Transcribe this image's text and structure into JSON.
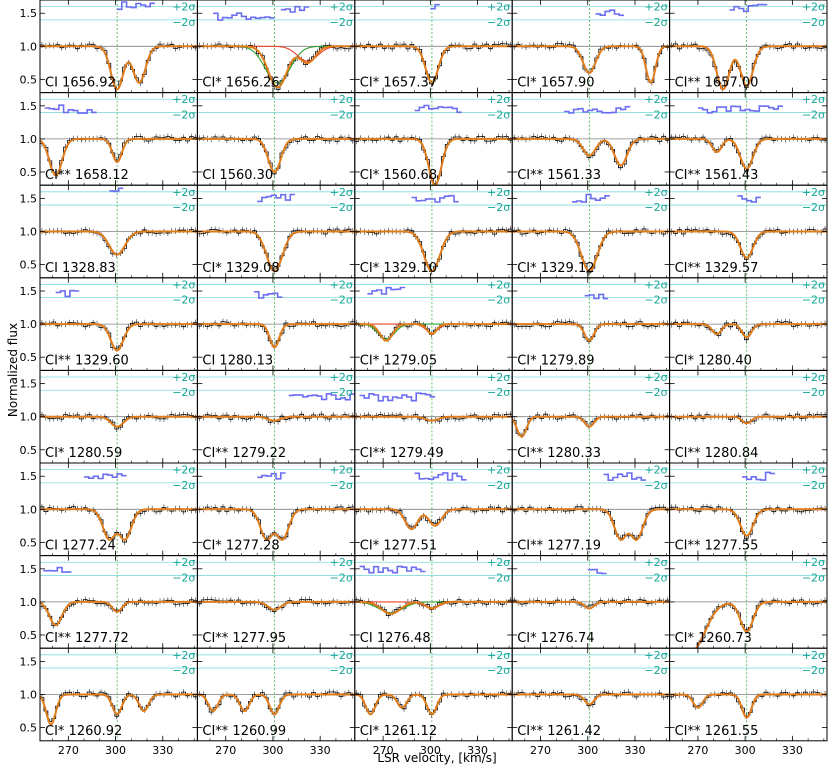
{
  "chart_data": {
    "type": "line",
    "ylabel": "Normalized flux",
    "xlabel": "LSR velocity, [km/s]",
    "xlim": [
      252,
      352
    ],
    "ylim": [
      0.3,
      1.7
    ],
    "xticks": [
      270,
      300,
      330
    ],
    "yticks": [
      0.5,
      1.0,
      1.5
    ],
    "reference_velocity": 301,
    "sigma_labels": [
      "+2σ",
      "−2σ"
    ],
    "colors": {
      "data": "#000000",
      "model": "#e07b1a",
      "component_green": "#2ca02c",
      "component_red": "#e8432a",
      "residual": "#6b6ef0",
      "sigma_band": "#7fdedc",
      "continuum": "#808080",
      "ref_line": "#2ca02c"
    },
    "panels": [
      {
        "label": "CI 1656.92",
        "lines": [
          {
            "v": 301,
            "d": 0.65,
            "w": 4
          },
          {
            "v": 315,
            "d": 0.55,
            "w": 4
          }
        ],
        "residual": [
          {
            "x0": 301,
            "x1": 322,
            "y": 1.62
          }
        ]
      },
      {
        "label": "CI* 1656.26",
        "lines": [
          {
            "v": 303,
            "d": 0.62,
            "w": 6
          },
          {
            "v": 322,
            "d": 0.25,
            "w": 5
          }
        ],
        "residual": [
          {
            "x0": 262,
            "x1": 300,
            "y": 1.45
          },
          {
            "x0": 305,
            "x1": 322,
            "y": 1.55
          }
        ],
        "components": true
      },
      {
        "label": "CI* 1657.37",
        "lines": [
          {
            "v": 301,
            "d": 0.55,
            "w": 4
          }
        ],
        "residual": [
          {
            "x0": 300,
            "x1": 305,
            "y": 1.6
          }
        ]
      },
      {
        "label": "CI* 1657.90",
        "lines": [
          {
            "v": 301,
            "d": 0.4,
            "w": 4
          },
          {
            "v": 340,
            "d": 0.55,
            "w": 3
          }
        ],
        "residual": [
          {
            "x0": 305,
            "x1": 320,
            "y": 1.5
          }
        ]
      },
      {
        "label": "CI** 1657.00",
        "lines": [
          {
            "v": 286,
            "d": 0.65,
            "w": 4
          },
          {
            "v": 301,
            "d": 0.6,
            "w": 4
          }
        ],
        "residual": [
          {
            "x0": 290,
            "x1": 312,
            "y": 1.58
          }
        ]
      },
      {
        "label": "CI** 1658.12",
        "lines": [
          {
            "v": 262,
            "d": 0.55,
            "w": 4
          },
          {
            "v": 301,
            "d": 0.35,
            "w": 3
          }
        ],
        "residual": [
          {
            "x0": 255,
            "x1": 285,
            "y": 1.45
          }
        ]
      },
      {
        "label": "CI 1560.30",
        "lines": [
          {
            "v": 301,
            "d": 0.5,
            "w": 4
          }
        ],
        "residual": []
      },
      {
        "label": "CI* 1560.68",
        "lines": [
          {
            "v": 303,
            "d": 0.7,
            "w": 4
          }
        ],
        "residual": [
          {
            "x0": 290,
            "x1": 318,
            "y": 1.45
          }
        ]
      },
      {
        "label": "CI** 1561.33",
        "lines": [
          {
            "v": 301,
            "d": 0.25,
            "w": 4
          },
          {
            "v": 321,
            "d": 0.4,
            "w": 4
          }
        ],
        "residual": [
          {
            "x0": 285,
            "x1": 325,
            "y": 1.45
          }
        ]
      },
      {
        "label": "CI** 1561.43",
        "lines": [
          {
            "v": 282,
            "d": 0.2,
            "w": 3
          },
          {
            "v": 301,
            "d": 0.45,
            "w": 4
          }
        ],
        "residual": [
          {
            "x0": 270,
            "x1": 322,
            "y": 1.45
          }
        ]
      },
      {
        "label": "CI 1328.83",
        "lines": [
          {
            "v": 301,
            "d": 0.35,
            "w": 5
          }
        ],
        "residual": [
          {
            "x0": 296,
            "x1": 304,
            "y": 1.6
          }
        ]
      },
      {
        "label": "CI* 1329.08",
        "lines": [
          {
            "v": 301,
            "d": 0.6,
            "w": 5
          }
        ],
        "residual": [
          {
            "x0": 290,
            "x1": 312,
            "y": 1.5
          }
        ]
      },
      {
        "label": "CI* 1329.10",
        "lines": [
          {
            "v": 301,
            "d": 0.6,
            "w": 5
          }
        ],
        "residual": [
          {
            "x0": 288,
            "x1": 315,
            "y": 1.5
          }
        ]
      },
      {
        "label": "CI* 1329.12",
        "lines": [
          {
            "v": 301,
            "d": 0.6,
            "w": 5
          }
        ],
        "residual": [
          {
            "x0": 290,
            "x1": 313,
            "y": 1.5
          }
        ]
      },
      {
        "label": "CI** 1329.57",
        "lines": [
          {
            "v": 301,
            "d": 0.4,
            "w": 4
          }
        ],
        "residual": [
          {
            "x0": 295,
            "x1": 308,
            "y": 1.5
          }
        ]
      },
      {
        "label": "CI** 1329.60",
        "lines": [
          {
            "v": 301,
            "d": 0.4,
            "w": 4
          }
        ],
        "residual": [
          {
            "x0": 262,
            "x1": 275,
            "y": 1.45
          }
        ]
      },
      {
        "label": "CI 1280.13",
        "lines": [
          {
            "v": 301,
            "d": 0.35,
            "w": 3
          }
        ],
        "residual": [
          {
            "x0": 288,
            "x1": 305,
            "y": 1.45
          }
        ]
      },
      {
        "label": "CI* 1279.05",
        "lines": [
          {
            "v": 272,
            "d": 0.25,
            "w": 4
          },
          {
            "v": 301,
            "d": 0.15,
            "w": 3
          }
        ],
        "residual": [
          {
            "x0": 260,
            "x1": 282,
            "y": 1.5
          }
        ],
        "components": true
      },
      {
        "label": "CI* 1279.89",
        "lines": [
          {
            "v": 301,
            "d": 0.25,
            "w": 3
          }
        ],
        "residual": [
          {
            "x0": 298,
            "x1": 310,
            "y": 1.4
          }
        ]
      },
      {
        "label": "CI* 1280.40",
        "lines": [
          {
            "v": 282,
            "d": 0.15,
            "w": 3
          },
          {
            "v": 301,
            "d": 0.2,
            "w": 3
          }
        ],
        "residual": []
      },
      {
        "label": "CI* 1280.59",
        "lines": [
          {
            "v": 301,
            "d": 0.15,
            "w": 4
          }
        ],
        "residual": []
      },
      {
        "label": "CI** 1279.22",
        "lines": [
          {
            "v": 301,
            "d": 0.06,
            "w": 4
          }
        ],
        "residual": [
          {
            "x0": 310,
            "x1": 350,
            "y": 1.3
          }
        ]
      },
      {
        "label": "CI** 1279.49",
        "lines": [
          {
            "v": 301,
            "d": 0.06,
            "w": 4
          }
        ],
        "residual": [
          {
            "x0": 255,
            "x1": 300,
            "y": 1.3
          }
        ]
      },
      {
        "label": "CI** 1280.33",
        "lines": [
          {
            "v": 258,
            "d": 0.3,
            "w": 3
          },
          {
            "v": 301,
            "d": 0.15,
            "w": 3
          }
        ],
        "residual": []
      },
      {
        "label": "CI** 1280.84",
        "lines": [
          {
            "v": 301,
            "d": 0.1,
            "w": 3
          }
        ],
        "residual": []
      },
      {
        "label": "CI 1277.24",
        "lines": [
          {
            "v": 296,
            "d": 0.45,
            "w": 4
          },
          {
            "v": 306,
            "d": 0.45,
            "w": 4
          }
        ],
        "residual": [
          {
            "x0": 280,
            "x1": 305,
            "y": 1.5
          }
        ]
      },
      {
        "label": "CI* 1277.28",
        "lines": [
          {
            "v": 296,
            "d": 0.45,
            "w": 4
          },
          {
            "v": 306,
            "d": 0.45,
            "w": 4
          }
        ],
        "residual": [
          {
            "x0": 290,
            "x1": 306,
            "y": 1.5
          }
        ]
      },
      {
        "label": "CI* 1277.51",
        "lines": [
          {
            "v": 288,
            "d": 0.3,
            "w": 4
          },
          {
            "v": 303,
            "d": 0.25,
            "w": 4
          }
        ],
        "residual": [
          {
            "x0": 290,
            "x1": 322,
            "y": 1.5
          }
        ]
      },
      {
        "label": "CI** 1277.19",
        "lines": [
          {
            "v": 321,
            "d": 0.45,
            "w": 4
          },
          {
            "v": 331,
            "d": 0.45,
            "w": 4
          }
        ],
        "residual": [
          {
            "x0": 310,
            "x1": 335,
            "y": 1.5
          }
        ]
      },
      {
        "label": "CI** 1277.55",
        "lines": [
          {
            "v": 301,
            "d": 0.4,
            "w": 4
          }
        ],
        "residual": [
          {
            "x0": 298,
            "x1": 318,
            "y": 1.5
          }
        ]
      },
      {
        "label": "CI** 1277.72",
        "lines": [
          {
            "v": 262,
            "d": 0.35,
            "w": 4
          },
          {
            "v": 301,
            "d": 0.15,
            "w": 3
          }
        ],
        "residual": [
          {
            "x0": 254,
            "x1": 270,
            "y": 1.5
          }
        ]
      },
      {
        "label": "CI** 1277.95",
        "lines": [
          {
            "v": 301,
            "d": 0.12,
            "w": 4
          }
        ],
        "residual": []
      },
      {
        "label": "CI 1276.48",
        "lines": [
          {
            "v": 275,
            "d": 0.18,
            "w": 6
          },
          {
            "v": 301,
            "d": 0.1,
            "w": 4
          }
        ],
        "residual": [
          {
            "x0": 255,
            "x1": 295,
            "y": 1.5
          }
        ],
        "components": true
      },
      {
        "label": "CI* 1276.74",
        "lines": [
          {
            "v": 301,
            "d": 0.1,
            "w": 3
          }
        ],
        "residual": [
          {
            "x0": 300,
            "x1": 310,
            "y": 1.45
          }
        ]
      },
      {
        "label": "CI* 1260.73",
        "lines": [
          {
            "v": 301,
            "d": 0.45,
            "w": 4
          }
        ],
        "residual": [],
        "damped": true
      },
      {
        "label": "CI* 1260.92",
        "lines": [
          {
            "v": 259,
            "d": 0.45,
            "w": 3
          },
          {
            "v": 301,
            "d": 0.3,
            "w": 3
          },
          {
            "v": 318,
            "d": 0.25,
            "w": 3
          }
        ],
        "residual": []
      },
      {
        "label": "CI** 1260.99",
        "lines": [
          {
            "v": 262,
            "d": 0.25,
            "w": 3
          },
          {
            "v": 282,
            "d": 0.25,
            "w": 3
          },
          {
            "v": 301,
            "d": 0.3,
            "w": 3
          }
        ],
        "residual": []
      },
      {
        "label": "CI* 1261.12",
        "lines": [
          {
            "v": 262,
            "d": 0.3,
            "w": 3
          },
          {
            "v": 282,
            "d": 0.2,
            "w": 3
          },
          {
            "v": 301,
            "d": 0.3,
            "w": 3
          }
        ],
        "residual": []
      },
      {
        "label": "CI** 1261.42",
        "lines": [
          {
            "v": 301,
            "d": 0.15,
            "w": 3
          }
        ],
        "residual": []
      },
      {
        "label": "CI** 1261.55",
        "lines": [
          {
            "v": 270,
            "d": 0.2,
            "w": 3
          },
          {
            "v": 301,
            "d": 0.35,
            "w": 3
          }
        ],
        "residual": []
      }
    ]
  }
}
